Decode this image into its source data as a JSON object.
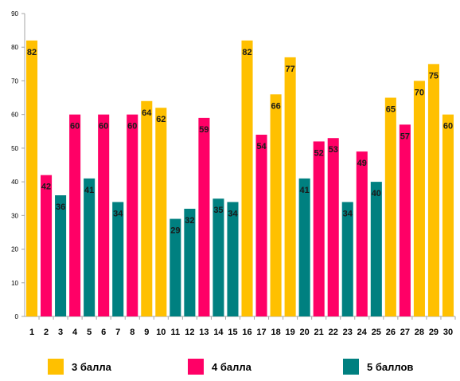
{
  "chart_data": {
    "type": "bar",
    "categories": [
      "1",
      "2",
      "3",
      "4",
      "5",
      "6",
      "7",
      "8",
      "9",
      "10",
      "11",
      "12",
      "13",
      "14",
      "15",
      "16",
      "17",
      "18",
      "19",
      "20",
      "21",
      "22",
      "23",
      "24",
      "25",
      "26",
      "27",
      "28",
      "29",
      "30"
    ],
    "values": [
      82,
      42,
      36,
      60,
      41,
      60,
      34,
      60,
      64,
      62,
      29,
      32,
      59,
      35,
      34,
      82,
      54,
      66,
      77,
      41,
      52,
      53,
      34,
      49,
      40,
      65,
      57,
      70,
      75,
      60
    ],
    "groups": [
      "3 балла",
      "4 балла",
      "5 баллов",
      "4 балла",
      "5 баллов",
      "4 балла",
      "5 баллов",
      "4 балла",
      "3 балла",
      "3 балла",
      "5 баллов",
      "5 баллов",
      "4 балла",
      "5 баллов",
      "5 баллов",
      "3 балла",
      "4 балла",
      "3 балла",
      "3 балла",
      "5 баллов",
      "4 балла",
      "4 балла",
      "5 баллов",
      "4 балла",
      "5 баллов",
      "3 балла",
      "4 балла",
      "3 балла",
      "3 балла",
      "3 балла"
    ],
    "ylim": [
      0,
      90
    ],
    "yticks": [
      "0",
      "10",
      "20",
      "30",
      "40",
      "50",
      "60",
      "70",
      "80",
      "90"
    ],
    "grid": false,
    "legend": {
      "placement": "bottom",
      "entries": [
        {
          "label": "3 балла",
          "color": "#FFC000"
        },
        {
          "label": "4 балла",
          "color": "#FF0066"
        },
        {
          "label": "5 баллов",
          "color": "#008080"
        }
      ]
    },
    "colors": {
      "3 балла": "#FFC000",
      "4 балла": "#FF0066",
      "5 баллов": "#008080",
      "axis": "#A6A6A6"
    }
  }
}
